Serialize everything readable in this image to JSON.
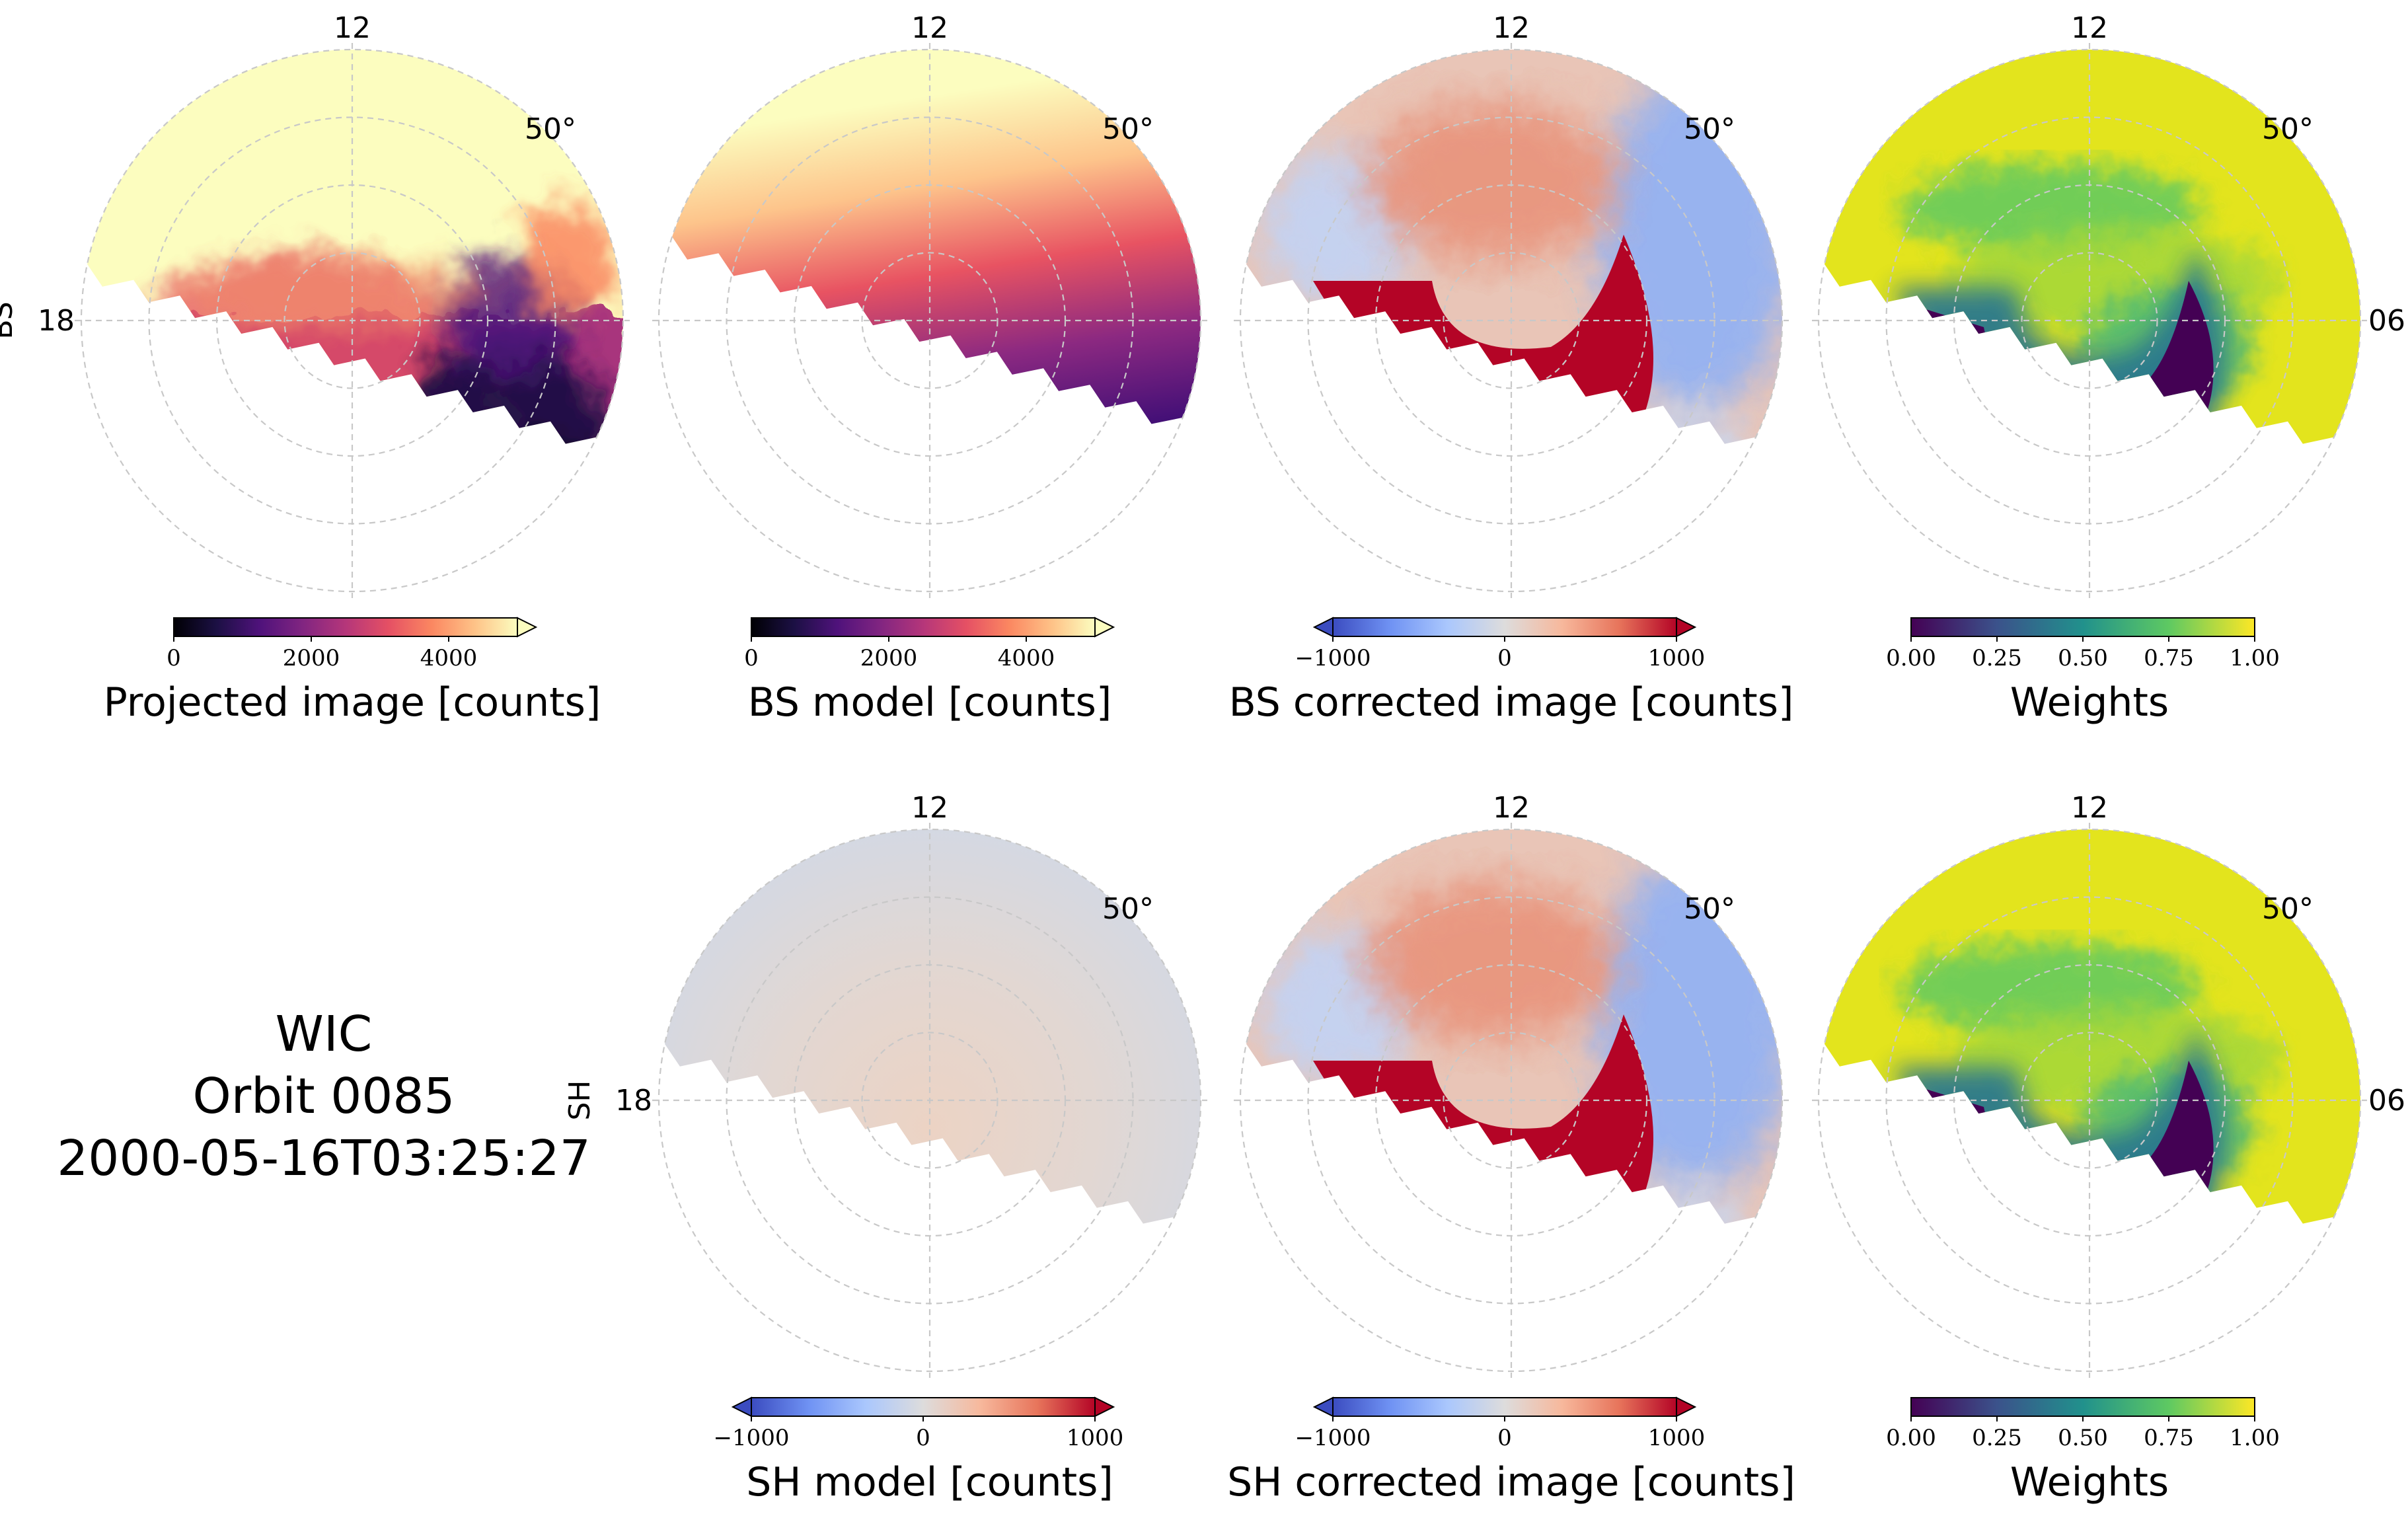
{
  "figure": {
    "info": {
      "instrument": "WIC",
      "orbit": "Orbit 0085",
      "timestamp": "2000-05-16T03:25:27"
    },
    "row_labels": {
      "bs": "BS",
      "sh": "SH"
    },
    "polar_labels": {
      "top": "12",
      "left": "18",
      "right": "06",
      "latitude": "50°"
    },
    "colors": {
      "missing_region": "#ffffff",
      "grid": "#c8c8c8"
    }
  },
  "chart_data": [
    {
      "type": "heatmap",
      "id": "projected-image",
      "row": 0,
      "col": 0,
      "projection": "polar (magnetic latitude / local time)",
      "cmap": "magma",
      "colorbar": {
        "label": "Projected image [counts]",
        "ticks": [
          "0",
          "2000",
          "4000"
        ],
        "tick_values": [
          0,
          2000,
          4000
        ],
        "range": [
          0,
          5000
        ],
        "extend": "max"
      },
      "show_left_label": true,
      "show_right_label": false
    },
    {
      "type": "heatmap",
      "id": "bs-model",
      "row": 0,
      "col": 1,
      "cmap": "magma",
      "colorbar": {
        "label": "BS model [counts]",
        "ticks": [
          "0",
          "2000",
          "4000"
        ],
        "tick_values": [
          0,
          2000,
          4000
        ],
        "range": [
          0,
          5000
        ],
        "extend": "max"
      },
      "show_left_label": false,
      "show_right_label": false
    },
    {
      "type": "heatmap",
      "id": "bs-corrected",
      "row": 0,
      "col": 2,
      "cmap": "coolwarm",
      "colorbar": {
        "label": "BS corrected image [counts]",
        "ticks": [
          "−1000",
          "0",
          "1000"
        ],
        "tick_values": [
          -1000,
          0,
          1000
        ],
        "range": [
          -1000,
          1000
        ],
        "extend": "both"
      },
      "show_left_label": false,
      "show_right_label": false
    },
    {
      "type": "heatmap",
      "id": "bs-weights",
      "row": 0,
      "col": 3,
      "cmap": "viridis",
      "colorbar": {
        "label": "Weights",
        "ticks": [
          "0.00",
          "0.25",
          "0.50",
          "0.75",
          "1.00"
        ],
        "tick_values": [
          0,
          0.25,
          0.5,
          0.75,
          1
        ],
        "range": [
          0,
          1
        ],
        "extend": "neither"
      },
      "show_left_label": false,
      "show_right_label": true
    },
    {
      "type": "heatmap",
      "id": "sh-model",
      "row": 1,
      "col": 1,
      "cmap": "coolwarm",
      "colorbar": {
        "label": "SH model [counts]",
        "ticks": [
          "−1000",
          "0",
          "1000"
        ],
        "tick_values": [
          -1000,
          0,
          1000
        ],
        "range": [
          -1000,
          1000
        ],
        "extend": "both"
      },
      "show_left_label": true,
      "show_right_label": false
    },
    {
      "type": "heatmap",
      "id": "sh-corrected",
      "row": 1,
      "col": 2,
      "cmap": "coolwarm",
      "colorbar": {
        "label": "SH corrected image [counts]",
        "ticks": [
          "−1000",
          "0",
          "1000"
        ],
        "tick_values": [
          -1000,
          0,
          1000
        ],
        "range": [
          -1000,
          1000
        ],
        "extend": "both"
      },
      "show_left_label": false,
      "show_right_label": false
    },
    {
      "type": "heatmap",
      "id": "sh-weights",
      "row": 1,
      "col": 3,
      "cmap": "viridis",
      "colorbar": {
        "label": "Weights",
        "ticks": [
          "0.00",
          "0.25",
          "0.50",
          "0.75",
          "1.00"
        ],
        "tick_values": [
          0,
          0.25,
          0.5,
          0.75,
          1
        ],
        "range": [
          0,
          1
        ],
        "extend": "neither"
      },
      "show_left_label": false,
      "show_right_label": true
    }
  ]
}
